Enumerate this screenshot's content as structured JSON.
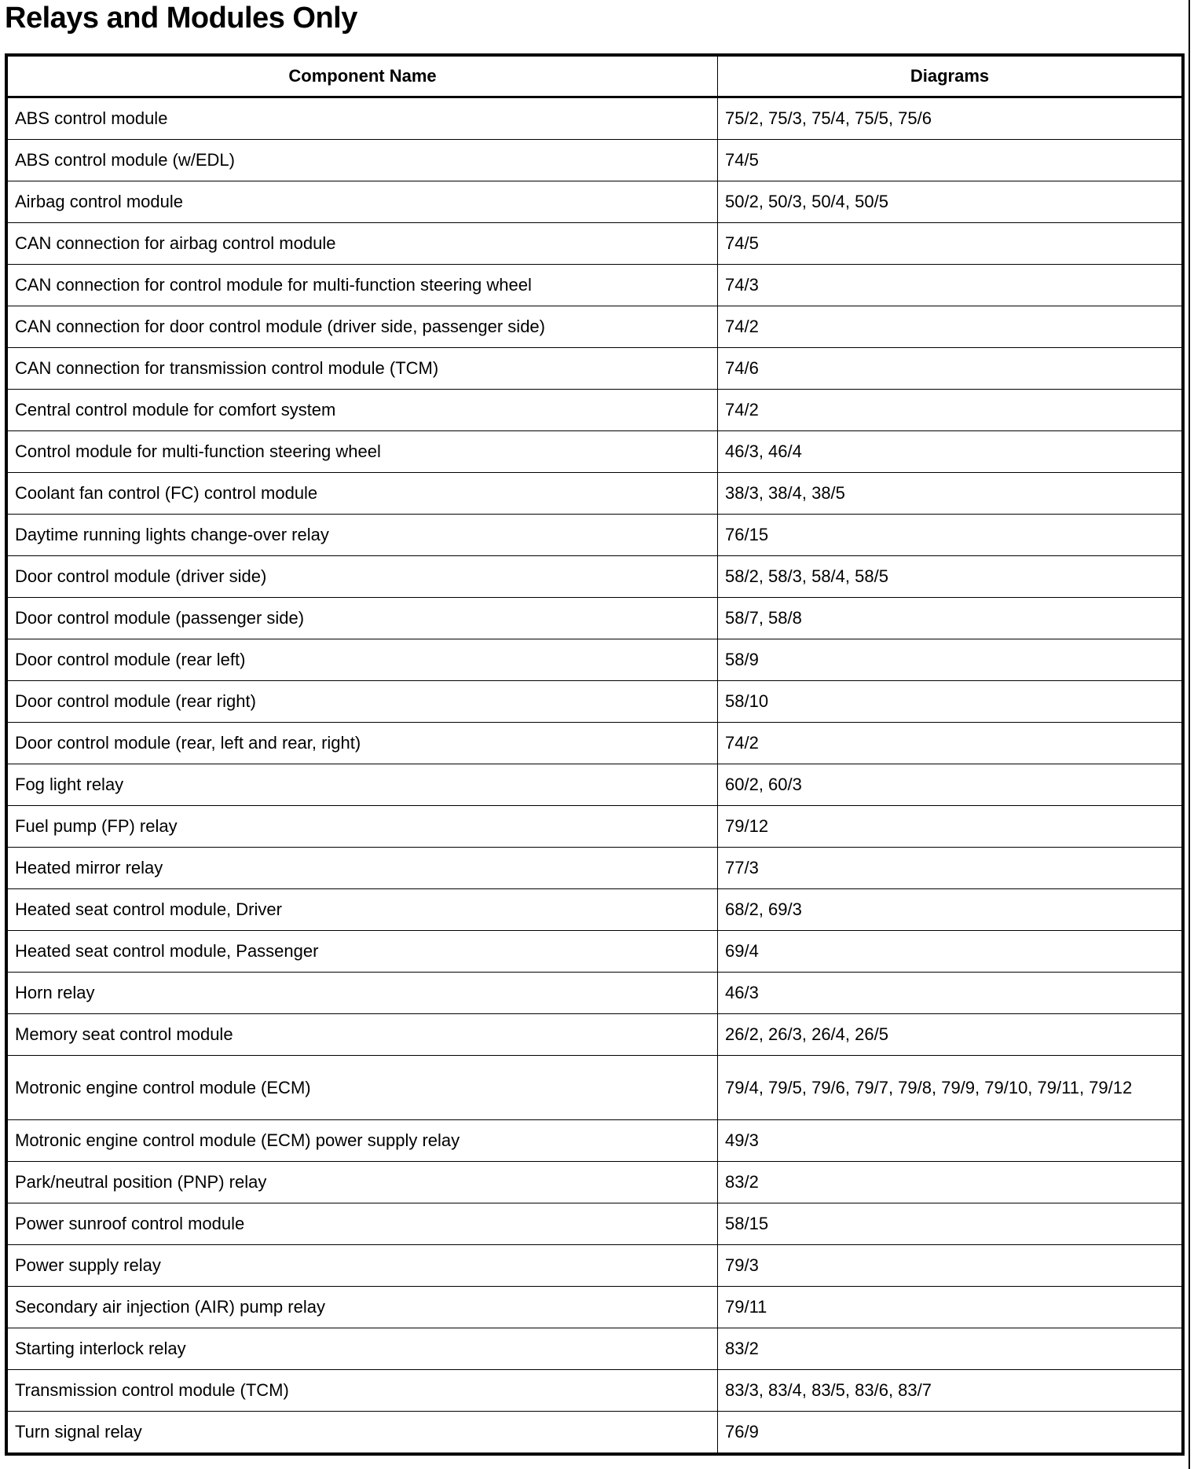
{
  "title": "Relays and Modules Only",
  "table": {
    "headers": [
      "Component Name",
      "Diagrams"
    ],
    "rows": [
      {
        "name": "ABS control module",
        "diagrams": "75/2, 75/3, 75/4, 75/5, 75/6"
      },
      {
        "name": "ABS control module (w/EDL)",
        "diagrams": "74/5"
      },
      {
        "name": "Airbag control module",
        "diagrams": "50/2, 50/3, 50/4, 50/5"
      },
      {
        "name": "CAN connection for airbag control module",
        "diagrams": "74/5"
      },
      {
        "name": "CAN connection for control module for multi-function steering wheel",
        "diagrams": "74/3"
      },
      {
        "name": "CAN connection for door control module (driver side, passenger side)",
        "diagrams": "74/2"
      },
      {
        "name": "CAN connection for transmission control module (TCM)",
        "diagrams": "74/6"
      },
      {
        "name": "Central control module for comfort system",
        "diagrams": "74/2"
      },
      {
        "name": "Control module for multi-function steering wheel",
        "diagrams": "46/3, 46/4"
      },
      {
        "name": "Coolant fan control (FC) control module",
        "diagrams": "38/3, 38/4, 38/5"
      },
      {
        "name": "Daytime running lights change-over relay",
        "diagrams": "76/15"
      },
      {
        "name": "Door control module (driver side)",
        "diagrams": "58/2, 58/3, 58/4, 58/5"
      },
      {
        "name": "Door control module (passenger side)",
        "diagrams": "58/7, 58/8"
      },
      {
        "name": "Door control module (rear left)",
        "diagrams": "58/9"
      },
      {
        "name": "Door control module (rear right)",
        "diagrams": "58/10"
      },
      {
        "name": "Door control module (rear, left and rear, right)",
        "diagrams": "74/2"
      },
      {
        "name": "Fog light relay",
        "diagrams": "60/2, 60/3"
      },
      {
        "name": "Fuel pump (FP) relay",
        "diagrams": "79/12"
      },
      {
        "name": "Heated mirror relay",
        "diagrams": "77/3"
      },
      {
        "name": "Heated seat control module, Driver",
        "diagrams": "68/2, 69/3"
      },
      {
        "name": "Heated seat control module, Passenger",
        "diagrams": "69/4"
      },
      {
        "name": "Horn relay",
        "diagrams": "46/3"
      },
      {
        "name": "Memory seat control module",
        "diagrams": "26/2, 26/3, 26/4, 26/5"
      },
      {
        "name": "Motronic engine control module (ECM)",
        "diagrams": "79/4, 79/5, 79/6, 79/7, 79/8, 79/9, 79/10, 79/11, 79/12"
      },
      {
        "name": "Motronic engine control module (ECM) power supply relay",
        "diagrams": "49/3"
      },
      {
        "name": "Park/neutral position (PNP) relay",
        "diagrams": "83/2"
      },
      {
        "name": "Power sunroof control module",
        "diagrams": "58/15"
      },
      {
        "name": "Power supply relay",
        "diagrams": "79/3"
      },
      {
        "name": "Secondary air injection (AIR) pump relay",
        "diagrams": "79/11"
      },
      {
        "name": "Starting interlock relay",
        "diagrams": "83/2"
      },
      {
        "name": "Transmission control module (TCM)",
        "diagrams": "83/3, 83/4, 83/5, 83/6, 83/7"
      },
      {
        "name": "Turn signal relay",
        "diagrams": "76/9"
      }
    ]
  }
}
